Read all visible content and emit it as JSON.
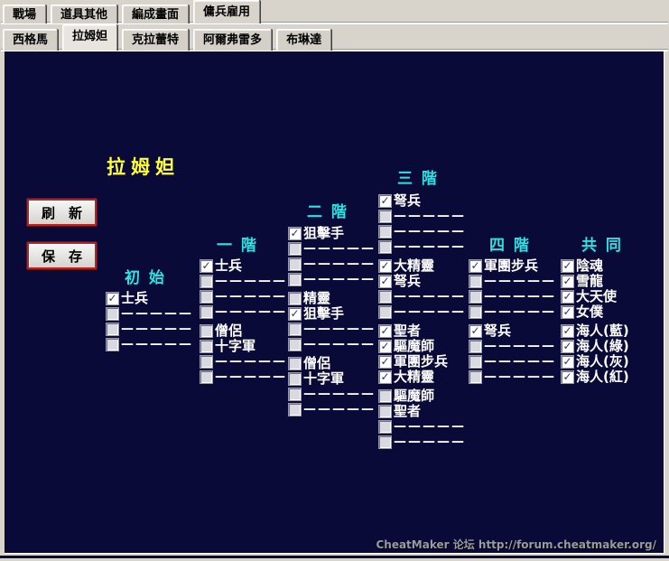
{
  "main_tabs": [
    {
      "label": "戰場",
      "active": false
    },
    {
      "label": "道具其他",
      "active": false
    },
    {
      "label": "編成畫面",
      "active": false
    },
    {
      "label": "傭兵雇用",
      "active": true
    }
  ],
  "character_tabs": [
    {
      "label": "西格馬",
      "active": false
    },
    {
      "label": "拉姆妲",
      "active": true
    },
    {
      "label": "克拉蕾特",
      "active": false
    },
    {
      "label": "阿爾弗雷多",
      "active": false
    },
    {
      "label": "布琳達",
      "active": false
    }
  ],
  "panel": {
    "title": "拉姆妲",
    "refresh_label": "刷　新",
    "save_label": "保　存",
    "status": "CheatMaker 论坛 http://forum.cheatmaker.org/",
    "dash_placeholder": "—————",
    "check_glyph": "✓",
    "colors": {
      "panel_bg": "#0a0a38",
      "tier_header": "#2de2e2",
      "title": "#ffff33",
      "button_border": "#b32424",
      "unit_label": "#ffffff",
      "checkmark": "#26317d",
      "status": "#9a9aa2"
    },
    "columns": [
      {
        "header": "初 始",
        "groups": [
          [
            {
              "label": "士兵",
              "checked": true
            },
            {
              "dash": true,
              "checked": false
            },
            {
              "dash": true,
              "checked": false
            },
            {
              "dash": true,
              "checked": false
            }
          ]
        ]
      },
      {
        "header": "一 階",
        "groups": [
          [
            {
              "label": "士兵",
              "checked": true
            },
            {
              "dash": true,
              "checked": false
            },
            {
              "dash": true,
              "checked": false
            },
            {
              "dash": true,
              "checked": false
            }
          ],
          [
            {
              "label": "僧侶",
              "checked": false
            },
            {
              "label": "十字軍",
              "checked": false
            },
            {
              "dash": true,
              "checked": false
            },
            {
              "dash": true,
              "checked": false
            }
          ]
        ]
      },
      {
        "header": "二 階",
        "groups": [
          [
            {
              "label": "狙擊手",
              "checked": true
            },
            {
              "dash": true,
              "checked": false
            },
            {
              "dash": true,
              "checked": false
            },
            {
              "dash": true,
              "checked": false
            }
          ],
          [
            {
              "label": "精靈",
              "checked": false
            },
            {
              "label": "狙擊手",
              "checked": true
            },
            {
              "dash": true,
              "checked": false
            },
            {
              "dash": true,
              "checked": false
            }
          ],
          [
            {
              "label": "僧侶",
              "checked": false
            },
            {
              "label": "十字軍",
              "checked": false
            },
            {
              "dash": true,
              "checked": false
            },
            {
              "dash": true,
              "checked": false
            }
          ]
        ]
      },
      {
        "header": "三 階",
        "groups": [
          [
            {
              "label": "弩兵",
              "checked": true
            },
            {
              "dash": true,
              "checked": false
            },
            {
              "dash": true,
              "checked": false
            },
            {
              "dash": true,
              "checked": false
            }
          ],
          [
            {
              "label": "大精靈",
              "checked": true
            },
            {
              "label": "弩兵",
              "checked": true
            },
            {
              "dash": true,
              "checked": false
            },
            {
              "dash": true,
              "checked": false
            }
          ],
          [
            {
              "label": "聖者",
              "checked": true
            },
            {
              "label": "驅魔師",
              "checked": true
            },
            {
              "label": "軍團步兵",
              "checked": true
            },
            {
              "label": "大精靈",
              "checked": true
            }
          ],
          [
            {
              "label": "驅魔師",
              "checked": false
            },
            {
              "label": "聖者",
              "checked": false
            },
            {
              "dash": true,
              "checked": false
            },
            {
              "dash": true,
              "checked": false
            }
          ]
        ]
      },
      {
        "header": "四 階",
        "groups": [
          [
            {
              "label": "軍團步兵",
              "checked": true
            },
            {
              "dash": true,
              "checked": false
            },
            {
              "dash": true,
              "checked": false
            },
            {
              "dash": true,
              "checked": false
            }
          ],
          [
            {
              "label": "弩兵",
              "checked": true
            },
            {
              "dash": true,
              "checked": false
            },
            {
              "dash": true,
              "checked": false
            },
            {
              "dash": true,
              "checked": false
            }
          ]
        ]
      },
      {
        "header": "共 同",
        "groups": [
          [
            {
              "label": "陰魂",
              "checked": true
            },
            {
              "label": "雪龍",
              "checked": true
            },
            {
              "label": "大天使",
              "checked": true
            },
            {
              "label": "女僕",
              "checked": true
            }
          ],
          [
            {
              "label": "海人(藍)",
              "checked": true
            },
            {
              "label": "海人(綠)",
              "checked": true
            },
            {
              "label": "海人(灰)",
              "checked": true
            },
            {
              "label": "海人(紅)",
              "checked": true
            }
          ]
        ]
      }
    ]
  }
}
